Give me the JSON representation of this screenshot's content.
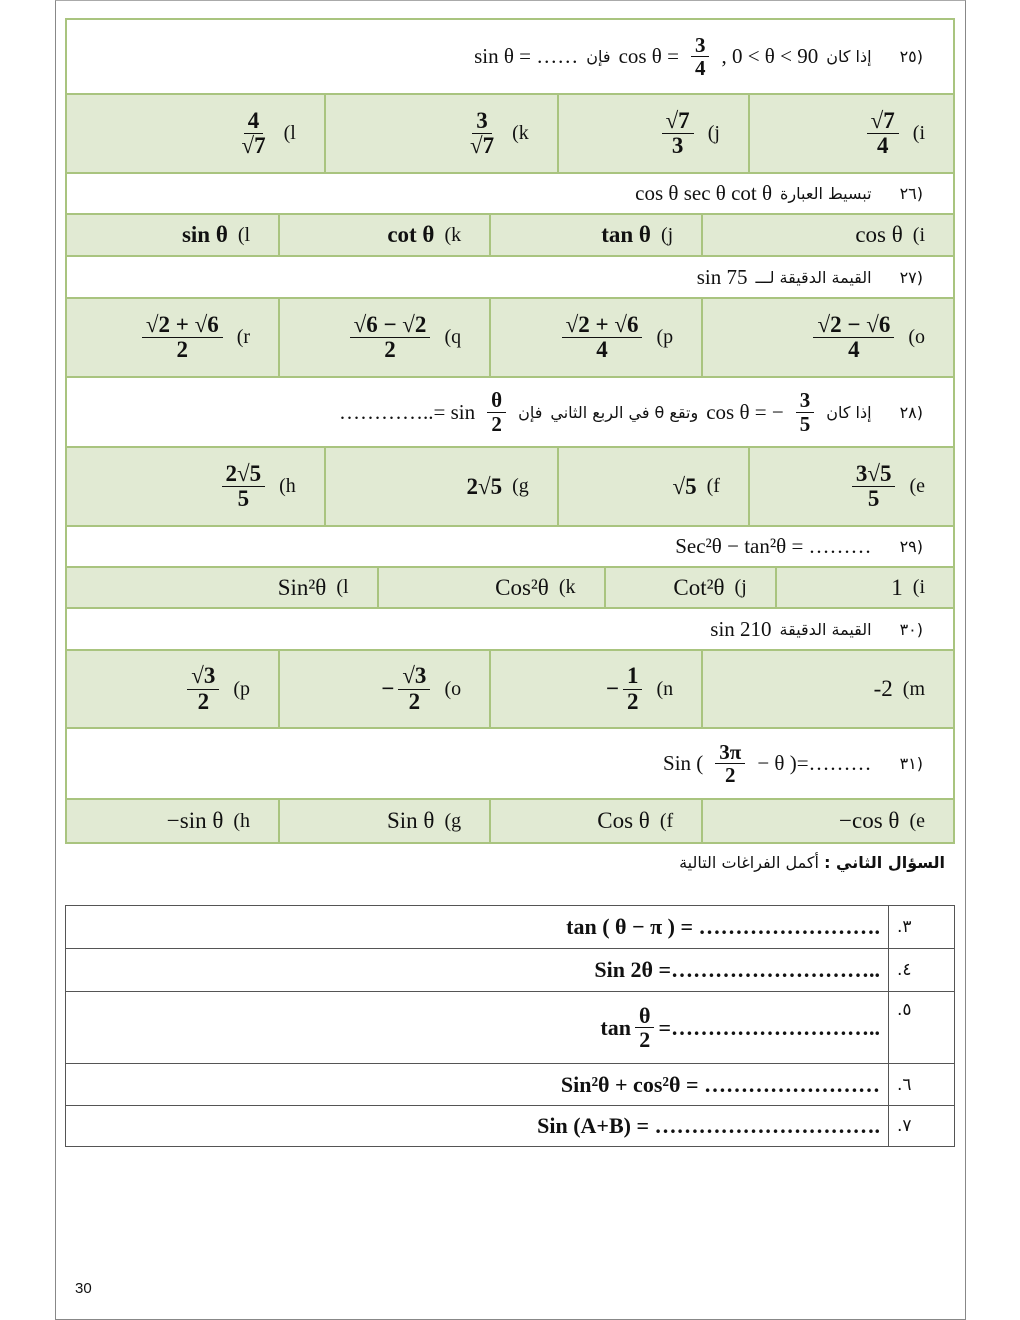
{
  "part1": {
    "questions": [
      {
        "number": "(٢٥",
        "parts": [
          {
            "t": "sin θ = ……"
          },
          {
            "ar": "فإن"
          },
          {
            "t": "cos θ ="
          },
          {
            "num": "3",
            "den": "4"
          },
          {
            "t": ", 0 < θ < 90"
          },
          {
            "ar": "إذا كان"
          }
        ],
        "options": [
          {
            "letter": "(i",
            "num": "√7",
            "den": "4"
          },
          {
            "letter": "(j",
            "num": "√7",
            "den": "3"
          },
          {
            "letter": "(k",
            "num": "3",
            "den": "√7"
          },
          {
            "letter": "(l",
            "num": "4",
            "den": "√7"
          }
        ]
      },
      {
        "number": "(٢٦",
        "parts": [
          {
            "t": "cos θ sec θ cot θ"
          },
          {
            "ar": "تبسيط العبارة"
          }
        ],
        "options": [
          {
            "letter": "(i",
            "t": "cos θ"
          },
          {
            "letter": "(j",
            "t": "tan θ",
            "bold": true
          },
          {
            "letter": "(k",
            "t": "cot θ",
            "bold": true
          },
          {
            "letter": "(l",
            "t": "sin θ",
            "bold": true
          }
        ]
      },
      {
        "number": "(٢٧",
        "parts": [
          {
            "t": "sin 75"
          },
          {
            "ar": "القيمة الدقيقة لـــ"
          }
        ],
        "options": [
          {
            "letter": "(o",
            "num": "√2 − √6",
            "den": "4"
          },
          {
            "letter": "(p",
            "num": "√2 + √6",
            "den": "4"
          },
          {
            "letter": "(q",
            "num": "√6 − √2",
            "den": "2"
          },
          {
            "letter": "(r",
            "num": "√2 + √6",
            "den": "2"
          }
        ]
      },
      {
        "number": "(٢٨",
        "parts": [
          {
            "t": "…………..= sin"
          },
          {
            "num": "θ",
            "den": "2"
          },
          {
            "ar": "فإن"
          },
          {
            "ar": "وتقع θ في الربع الثاني"
          },
          {
            "t": "cos θ = −"
          },
          {
            "num": "3",
            "den": "5"
          },
          {
            "ar": "إذا كان"
          }
        ],
        "options": [
          {
            "letter": "(e",
            "num": "3√5",
            "den": "5"
          },
          {
            "letter": "(f",
            "t": "√5",
            "bold": true
          },
          {
            "letter": "(g",
            "t": "2√5",
            "bold": true
          },
          {
            "letter": "(h",
            "num": "2√5",
            "den": "5"
          }
        ]
      },
      {
        "number": "(٢٩",
        "parts": [
          {
            "t": "Sec²θ − tan²θ = ………"
          }
        ],
        "options": [
          {
            "letter": "(i",
            "t": "1"
          },
          {
            "letter": "(j",
            "t": "Cot²θ"
          },
          {
            "letter": "(k",
            "t": "Cos²θ"
          },
          {
            "letter": "(l",
            "t": "Sin²θ"
          }
        ]
      },
      {
        "number": "(٣٠",
        "parts": [
          {
            "t": "sin 210"
          },
          {
            "ar": "القيمة الدقيقة"
          }
        ],
        "options": [
          {
            "letter": "(m",
            "t": "-2"
          },
          {
            "letter": "(n",
            "prefix": "−",
            "num": "1",
            "den": "2"
          },
          {
            "letter": "(o",
            "prefix": "−",
            "num": "√3",
            "den": "2"
          },
          {
            "letter": "(p",
            "num": "√3",
            "den": "2"
          }
        ]
      },
      {
        "number": "(٣١",
        "parts": [
          {
            "t": "Sin ("
          },
          {
            "num": "3π",
            "den": "2"
          },
          {
            "t": "− θ )=………"
          }
        ],
        "options": [
          {
            "letter": "(e",
            "t": "−cos θ"
          },
          {
            "letter": "(f",
            "t": "Cos θ"
          },
          {
            "letter": "(g",
            "t": "Sin θ"
          },
          {
            "letter": "(h",
            "t": "−sin θ"
          }
        ]
      }
    ]
  },
  "part2": {
    "heading_bold": "السؤال الثاني :",
    "heading_rest": "أكمل الفراغات التالية",
    "items": [
      {
        "number": ".٣",
        "parts": [
          {
            "t": "tan ( θ − π ) = ……………………."
          }
        ]
      },
      {
        "number": ".٤",
        "parts": [
          {
            "t": "Sin 2θ =……………………….."
          }
        ]
      },
      {
        "number": ".٥",
        "parts": [
          {
            "t": "tan"
          },
          {
            "num": "θ",
            "den": "2"
          },
          {
            "t": "=……………………….."
          }
        ]
      },
      {
        "number": ".٦",
        "parts": [
          {
            "t": "Sin²θ + cos²θ = ……………………"
          }
        ]
      },
      {
        "number": ".٧",
        "parts": [
          {
            "t": "Sin (A+B) = …………………………."
          }
        ]
      }
    ]
  },
  "page_number": "30",
  "colors": {
    "option_fill": "#e1ead3",
    "border": "#a9c47f"
  }
}
